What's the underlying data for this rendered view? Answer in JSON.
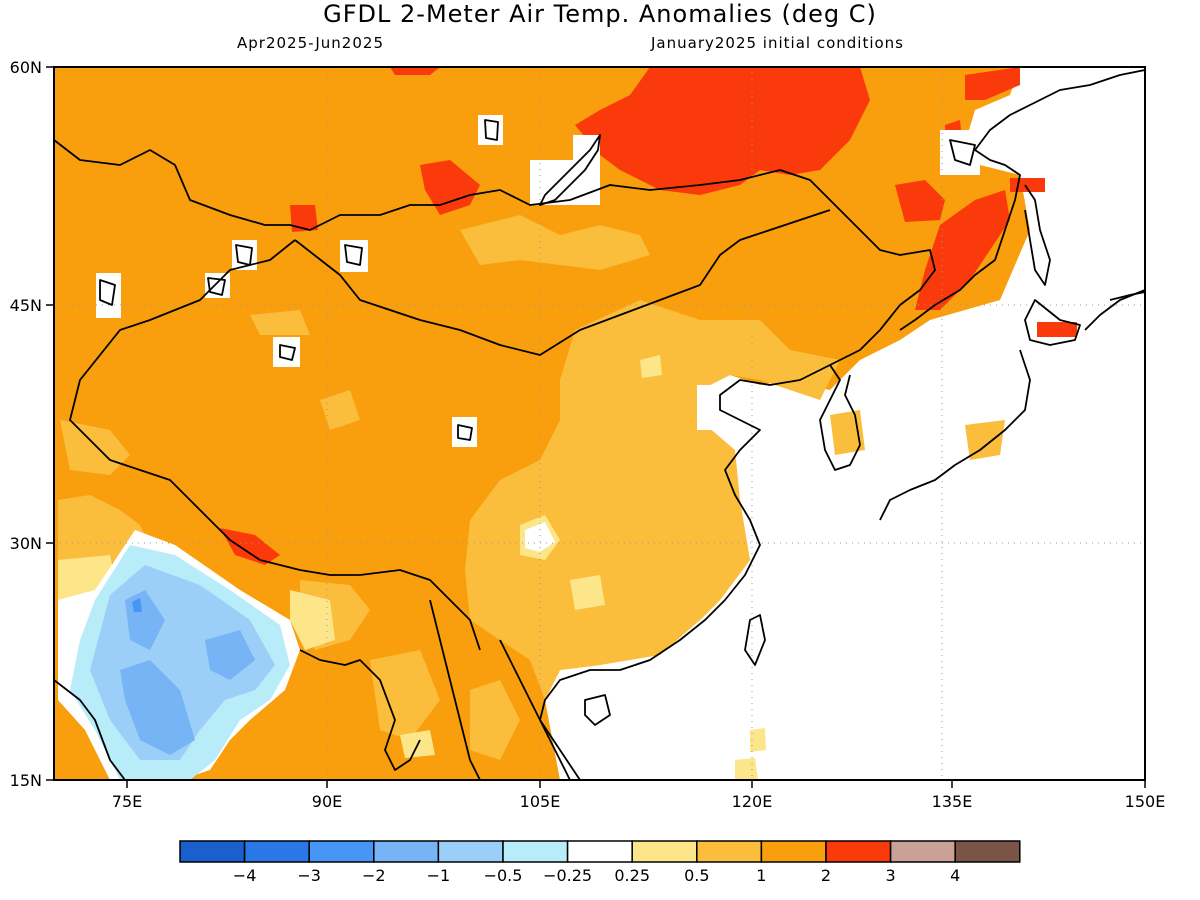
{
  "header": {
    "title": "GFDL 2-Meter Air Temp. Anomalies (deg C)",
    "period": "Apr2025-Jun2025",
    "init": "January2025 initial conditions"
  },
  "axes": {
    "lat_labels": [
      "60N",
      "45N",
      "30N",
      "15N"
    ],
    "lon_labels": [
      "75E",
      "90E",
      "105E",
      "120E",
      "135E",
      "150E"
    ]
  },
  "colorbar": {
    "colors": [
      "#1a60cc",
      "#2a78e6",
      "#4696f5",
      "#76b4f5",
      "#9ccff8",
      "#b8ecf8",
      "#ffffff",
      "#fde68a",
      "#fbbd3c",
      "#f99e0c",
      "#fa3a0a",
      "#c9a197",
      "#7a5447"
    ],
    "labels": [
      "−4",
      "−3",
      "−2",
      "−1",
      "−0.5",
      "−0.25",
      "0.25",
      "0.5",
      "1",
      "2",
      "3",
      "4"
    ]
  }
}
